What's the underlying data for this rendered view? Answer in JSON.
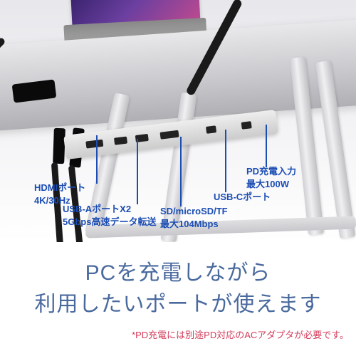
{
  "labels": {
    "hdmi": {
      "line1": "HDMIポート",
      "line2": "4K/30Hz"
    },
    "usba": {
      "line1": "USB-AポートX2",
      "line2": "5Gbps高速データ転送"
    },
    "sd": {
      "line1": "SD/microSD/TF",
      "line2": "最大104Mbps"
    },
    "usbc": {
      "line1": "USB-Cポート"
    },
    "pd": {
      "line1": "PD充電入力",
      "line2": "最大100W"
    }
  },
  "headline": {
    "line1": "PCを充電しながら",
    "line2": "利用したいポートが使えます"
  },
  "footnote": "*PD充電には別途PD対応のACアダプタが必要です。",
  "colors": {
    "label": "#1b4db3",
    "headline": "#4a6a9e",
    "footnote": "#d23c5a"
  }
}
